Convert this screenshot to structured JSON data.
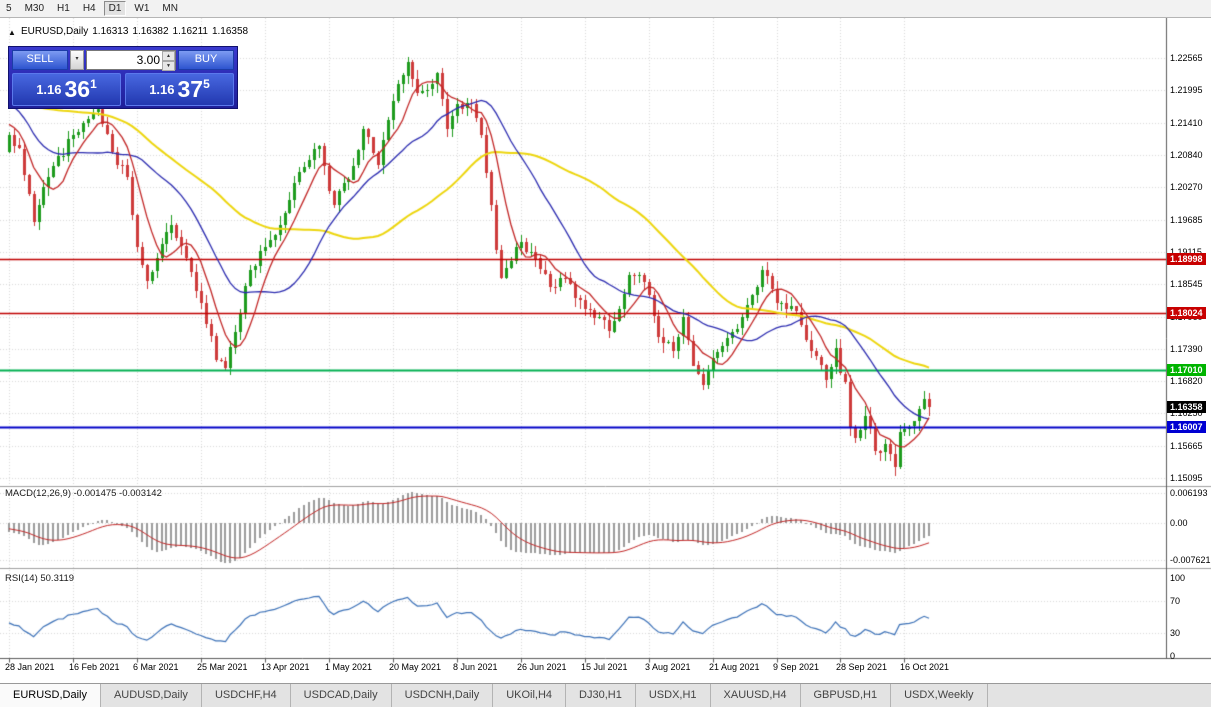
{
  "toolbar": {
    "timeframes": [
      "5",
      "M30",
      "H1",
      "H4",
      "D1",
      "W1",
      "MN"
    ],
    "active": "D1"
  },
  "chart": {
    "header": {
      "symbol": "EURUSD,Daily",
      "open": "1.16313",
      "high": "1.16382",
      "low": "1.16211",
      "close": "1.16358"
    }
  },
  "trade_panel": {
    "sell_label": "SELL",
    "buy_label": "BUY",
    "volume": "3.00",
    "sell_price": {
      "base": "1.16",
      "big": "36",
      "sup": "1"
    },
    "buy_price": {
      "base": "1.16",
      "big": "37",
      "sup": "5"
    }
  },
  "price_axis": {
    "labels": [
      "1.22565",
      "1.21995",
      "1.21410",
      "1.20840",
      "1.20270",
      "1.19685",
      "1.19115",
      "1.18545",
      "1.17960",
      "1.17390",
      "1.16820",
      "1.16250",
      "1.15665",
      "1.15095"
    ],
    "tags": [
      {
        "text": "1.18998",
        "price": 1.18998,
        "bg": "#C80000",
        "name": "resistance-price-tag-1"
      },
      {
        "text": "1.18024",
        "price": 1.18024,
        "bg": "#C80000",
        "name": "resistance-price-tag-2"
      },
      {
        "text": "1.17010",
        "price": 1.1701,
        "bg": "#00B400",
        "name": "support-price-tag"
      },
      {
        "text": "1.16358",
        "price": 1.16358,
        "bg": "#000000",
        "name": "bid-price-tag"
      },
      {
        "text": "1.16007",
        "price": 1.16007,
        "bg": "#0000D2",
        "name": "blue-level-price-tag"
      }
    ]
  },
  "indicators": {
    "macd": {
      "label": "MACD(12,26,9) -0.001475 -0.003142",
      "axis": [
        {
          "text": "0.006193",
          "value": 0.006193
        },
        {
          "text": "0.00",
          "value": 0
        },
        {
          "text": "-0.007621",
          "value": -0.007621
        }
      ]
    },
    "rsi": {
      "label": "RSI(14) 50.3119",
      "axis": [
        {
          "text": "100",
          "value": 100
        },
        {
          "text": "70",
          "value": 70
        },
        {
          "text": "30",
          "value": 30
        },
        {
          "text": "0",
          "value": 0
        }
      ]
    }
  },
  "date_axis": [
    "28 Jan 2021",
    "16 Feb 2021",
    "6 Mar 2021",
    "25 Mar 2021",
    "13 Apr 2021",
    "1 May 2021",
    "20 May 2021",
    "8 Jun 2021",
    "26 Jun 2021",
    "15 Jul 2021",
    "3 Aug 2021",
    "21 Aug 2021",
    "9 Sep 2021",
    "28 Sep 2021",
    "16 Oct 2021"
  ],
  "tabs": {
    "items": [
      "EURUSD,Daily",
      "AUDUSD,Daily",
      "USDCHF,H4",
      "USDCAD,Daily",
      "USDCNH,Daily",
      "UKOil,H4",
      "DJ30,H1",
      "USDX,H1",
      "XAUUSD,H4",
      "GBPUSD,H1",
      "USDX,Weekly"
    ],
    "active": "EURUSD,Daily"
  },
  "chart_data": {
    "type": "candlestick",
    "symbol": "EURUSD",
    "timeframe": "Daily",
    "last_ohlc": {
      "open": 1.16313,
      "high": 1.16382,
      "low": 1.16211,
      "close": 1.16358
    },
    "bars": 188,
    "bar_label_interval": 13,
    "noise_amplitude": 0.0009,
    "wick_amplitude": 0.0016,
    "prehistory_waypoints": [
      [
        -60,
        1.195
      ],
      [
        -45,
        1.208
      ],
      [
        -35,
        1.218
      ],
      [
        -25,
        1.225
      ],
      [
        -16,
        1.229
      ],
      [
        -12,
        1.216
      ],
      [
        -9,
        1.208
      ],
      [
        -6,
        1.214
      ],
      [
        -3,
        1.217
      ],
      [
        -1,
        1.209
      ]
    ],
    "price_waypoints": [
      [
        0,
        1.212
      ],
      [
        2,
        1.2095
      ],
      [
        5,
        1.1965
      ],
      [
        8,
        1.2045
      ],
      [
        13,
        1.212
      ],
      [
        18,
        1.2165
      ],
      [
        21,
        1.209
      ],
      [
        24,
        1.2045
      ],
      [
        26,
        1.192
      ],
      [
        28,
        1.186
      ],
      [
        30,
        1.19
      ],
      [
        33,
        1.196
      ],
      [
        36,
        1.19
      ],
      [
        39,
        1.182
      ],
      [
        42,
        1.172
      ],
      [
        44,
        1.1705
      ],
      [
        46,
        1.177
      ],
      [
        49,
        1.188
      ],
      [
        52,
        1.192
      ],
      [
        55,
        1.196
      ],
      [
        58,
        1.2035
      ],
      [
        61,
        1.2075
      ],
      [
        63,
        1.21
      ],
      [
        65,
        1.202
      ],
      [
        66,
        1.1995
      ],
      [
        70,
        1.2065
      ],
      [
        72,
        1.213
      ],
      [
        75,
        1.2065
      ],
      [
        78,
        1.218
      ],
      [
        81,
        1.225
      ],
      [
        83,
        1.2195
      ],
      [
        85,
        1.22
      ],
      [
        87,
        1.223
      ],
      [
        89,
        1.213
      ],
      [
        91,
        1.2175
      ],
      [
        94,
        1.2175
      ],
      [
        96,
        1.212
      ],
      [
        98,
        1.1995
      ],
      [
        99,
        1.1915
      ],
      [
        100,
        1.1865
      ],
      [
        103,
        1.192
      ],
      [
        104,
        1.193
      ],
      [
        107,
        1.19
      ],
      [
        110,
        1.185
      ],
      [
        113,
        1.1865
      ],
      [
        115,
        1.183
      ],
      [
        117,
        1.181
      ],
      [
        120,
        1.1795
      ],
      [
        122,
        1.177
      ],
      [
        124,
        1.181
      ],
      [
        126,
        1.187
      ],
      [
        128,
        1.187
      ],
      [
        130,
        1.1835
      ],
      [
        132,
        1.176
      ],
      [
        135,
        1.1735
      ],
      [
        137,
        1.1795
      ],
      [
        139,
        1.171
      ],
      [
        141,
        1.1675
      ],
      [
        142,
        1.17
      ],
      [
        145,
        1.1745
      ],
      [
        147,
        1.177
      ],
      [
        149,
        1.1795
      ],
      [
        151,
        1.1835
      ],
      [
        153,
        1.188
      ],
      [
        155,
        1.1845
      ],
      [
        156,
        1.182
      ],
      [
        158,
        1.181
      ],
      [
        160,
        1.1805
      ],
      [
        162,
        1.1755
      ],
      [
        164,
        1.1725
      ],
      [
        166,
        1.1685
      ],
      [
        168,
        1.174
      ],
      [
        169,
        1.1695
      ],
      [
        170,
        1.168
      ],
      [
        171,
        1.16
      ],
      [
        172,
        1.158
      ],
      [
        173,
        1.1595
      ],
      [
        174,
        1.162
      ],
      [
        175,
        1.16
      ],
      [
        176,
        1.1558
      ],
      [
        177,
        1.1555
      ],
      [
        178,
        1.157
      ],
      [
        179,
        1.1553
      ],
      [
        180,
        1.153
      ],
      [
        181,
        1.1592
      ],
      [
        182,
        1.1597
      ],
      [
        183,
        1.1601
      ],
      [
        184,
        1.161
      ],
      [
        185,
        1.1632
      ],
      [
        186,
        1.165
      ],
      [
        187,
        1.16358
      ]
    ],
    "moving_averages": [
      {
        "name": "slow-ma",
        "period": 50,
        "color": "#EDD60E",
        "width": 2
      },
      {
        "name": "mid-ma",
        "period": 21,
        "color": "#2B2BB0",
        "width": 1.3
      },
      {
        "name": "fast-ma",
        "period": 7,
        "color": "#C22626",
        "width": 1.3
      }
    ],
    "levels": [
      {
        "price": 1.18998,
        "color": "#C00000",
        "width": 1.4
      },
      {
        "price": 1.18024,
        "color": "#C00000",
        "width": 1.4
      },
      {
        "price": 1.1701,
        "color": "#00B050",
        "width": 2
      },
      {
        "price": 1.16007,
        "color": "#0000C8",
        "width": 2
      }
    ],
    "macd": {
      "fast": 12,
      "slow": 26,
      "signal": 9,
      "axis_max": 0.006193,
      "axis_min": -0.007621,
      "current": -0.001475,
      "signal_current": -0.003142
    },
    "rsi": {
      "period": 14,
      "current": 50.3119,
      "levels": [
        70,
        30
      ]
    },
    "candle_up_color": "#1E9B1E",
    "candle_down_color": "#CE3B3B",
    "histogram_color": "#9C9C9C",
    "macd_signal_color": "#C22626",
    "rsi_line_color": "#3D72B8"
  }
}
